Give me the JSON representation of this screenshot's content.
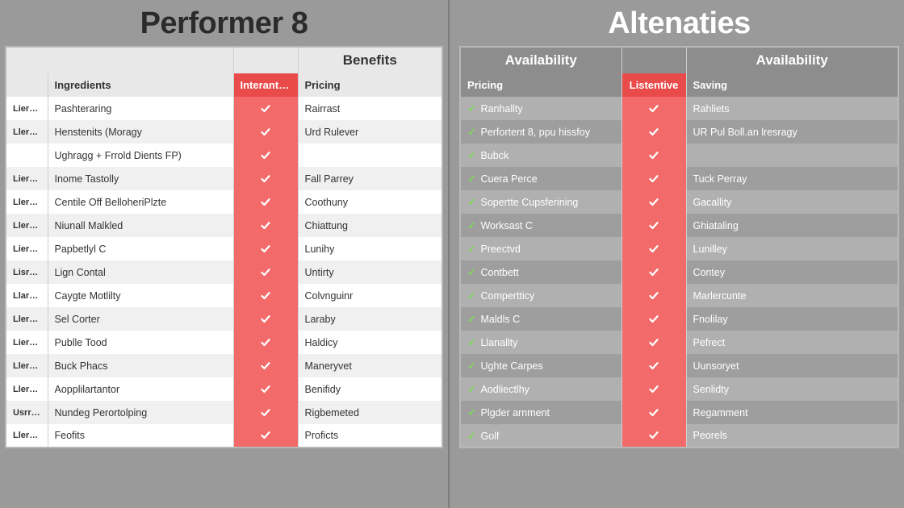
{
  "colors": {
    "page_bg": "#9a9a9a",
    "accent_red": "#e94b4b",
    "accent_red_light": "#f26a6a",
    "check_green": "#7ed957",
    "left_row_alt": "#f0f0f0",
    "right_row_alt": "#9e9e9e",
    "right_row": "#b0b0b0"
  },
  "left": {
    "title": "Performer 8",
    "superheads": [
      "",
      "",
      "",
      "Benefits"
    ],
    "headers": {
      "c0": "",
      "c1": "Ingredients",
      "c2": "Interantive",
      "c3": "Pricing"
    },
    "rows": [
      {
        "tag": "Lierrard",
        "ing": "Pashteraring",
        "price": "Rairrast"
      },
      {
        "tag": "Llerrard",
        "ing": "Henstenits (Moragy",
        "price": "Urd Rulever"
      },
      {
        "tag": "",
        "ing": "Ughragg + Frrold Dients FP)",
        "price": ""
      },
      {
        "tag": "Lierraed",
        "ing": "Inome Tastolly",
        "price": "Fall Parrey"
      },
      {
        "tag": "Llerated",
        "ing": "Centile Off BelloheriPlzte",
        "price": "Coothuny"
      },
      {
        "tag": "Llerrard",
        "ing": "Niunall Malkled",
        "price": "Chiattung"
      },
      {
        "tag": "Lierraed",
        "ing": "Papbetlyl C",
        "price": "Lunihy"
      },
      {
        "tag": "Lisrrard",
        "ing": "Lign Contal",
        "price": "Untirty"
      },
      {
        "tag": "Llarrard",
        "ing": "Caygte Motlilty",
        "price": "Colvnguinr"
      },
      {
        "tag": "Llerrard",
        "ing": "Sel Corter",
        "price": "Laraby"
      },
      {
        "tag": "Lierrard",
        "ing": "Publle Tood",
        "price": "Haldicy"
      },
      {
        "tag": "Llerated",
        "ing": "Buck Phacs",
        "price": "Maneryvet"
      },
      {
        "tag": "Llerrard",
        "ing": "Aopplilartantor",
        "price": "Benifidy"
      },
      {
        "tag": "Usrrard",
        "ing": "Nundeg Perortolping",
        "price": "Rigbemeted"
      },
      {
        "tag": "Llerrard",
        "ing": "Feofits",
        "price": "Proficts"
      }
    ]
  },
  "right": {
    "title": "Altenaties",
    "superheads": [
      "Availability",
      "",
      "Availability"
    ],
    "headers": {
      "c0": "Pricing",
      "c1": "Listentive",
      "c2": "Saving"
    },
    "rows": [
      {
        "p": "Ranhallty",
        "s": "Rahliets"
      },
      {
        "p": "Perfortent 8, ppu hissfoy",
        "s": "UR Pul Boll.an lresragy"
      },
      {
        "p": "Bubck",
        "s": ""
      },
      {
        "p": "Cuera Perce",
        "s": "Tuck Perray"
      },
      {
        "p": "Sopertte Cupsferining",
        "s": "Gacallity"
      },
      {
        "p": "Worksast C",
        "s": "Ghiataling"
      },
      {
        "p": "Preectvd",
        "s": "Lunilley"
      },
      {
        "p": "Contbett",
        "s": "Contey"
      },
      {
        "p": "Compertticy",
        "s": "Marlercunte"
      },
      {
        "p": "Maldls C",
        "s": "Fnolilay"
      },
      {
        "p": "Llanallty",
        "s": "Pefrect"
      },
      {
        "p": "Ughte Carpes",
        "s": "Uunsoryet"
      },
      {
        "p": "Aodliectlhy",
        "s": "Senlidty"
      },
      {
        "p": "Plgder arnment",
        "s": "Regamment"
      },
      {
        "p": "Golf",
        "s": "Peorels"
      }
    ]
  }
}
